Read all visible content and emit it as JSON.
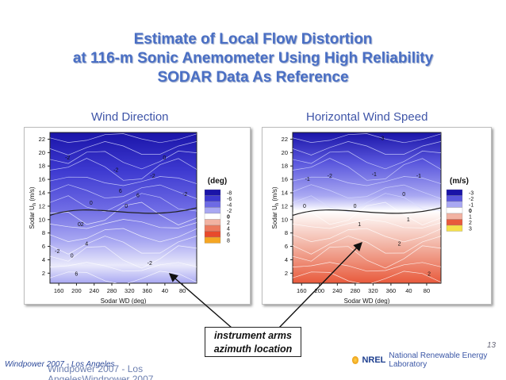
{
  "slide": {
    "title_lines": [
      "Estimate of Local Flow Distortion",
      "at 116-m Sonic Anemometer Using High Reliability",
      "SODAR Data As Reference"
    ],
    "footer_left": "Windpower 2007 - Los Angeles",
    "footer_ghost": "Windpower 2007 - Los AngelesWindpower 2007",
    "page_number": "13",
    "lab_name": "National Renewable Energy Laboratory",
    "lab_logo": "NREL",
    "callout": [
      "instrument arms",
      "azimuth location"
    ]
  },
  "chart_data": [
    {
      "type": "heatmap",
      "title": "Wind Direction",
      "xlabel": "Sodar WD (deg)",
      "ylabel": "Sodar U",
      "ylabel_sub": "h",
      "ylabel_unit": "(m/s)",
      "x_tick_labels": [
        "160",
        "200",
        "240",
        "280",
        "320",
        "360",
        "40",
        "80"
      ],
      "y_ticks": [
        2,
        4,
        6,
        8,
        10,
        12,
        14,
        16,
        18,
        20,
        22
      ],
      "ylim": [
        0.5,
        23
      ],
      "legend_title": "(deg)",
      "legend": [
        {
          "label": "-8",
          "color": "#1a14a8"
        },
        {
          "label": "-6",
          "color": "#3d39d0"
        },
        {
          "label": "-4",
          "color": "#6d6ae4"
        },
        {
          "label": "-2",
          "color": "#a9a8f2"
        },
        {
          "label": "0",
          "color": "#ffffff"
        },
        {
          "label": "2",
          "color": "#f2b3a3"
        },
        {
          "label": "4",
          "color": "#ec7a5e"
        },
        {
          "label": "6",
          "color": "#e84a2c"
        },
        {
          "label": "8",
          "color": "#f5a623"
        }
      ],
      "contour_labels": [
        "-2",
        "-2",
        "-2",
        "-2",
        "-2",
        "-2",
        "0",
        "0",
        "0",
        "0",
        "0",
        "2",
        "4",
        "6",
        "6",
        "6"
      ]
    },
    {
      "type": "heatmap",
      "title": "Horizontal Wind Speed",
      "xlabel": "Sodar WD (deg)",
      "ylabel": "Sodar U",
      "ylabel_sub": "h",
      "ylabel_unit": "(m/s)",
      "x_tick_labels": [
        "160",
        "200",
        "240",
        "280",
        "320",
        "360",
        "40",
        "80"
      ],
      "y_ticks": [
        2,
        4,
        6,
        8,
        10,
        12,
        14,
        16,
        18,
        20,
        22
      ],
      "ylim": [
        0.5,
        23
      ],
      "legend_title": "(m/s)",
      "legend": [
        {
          "label": "-3",
          "color": "#1a14a8"
        },
        {
          "label": "-2",
          "color": "#5a57dd"
        },
        {
          "label": "-1",
          "color": "#a9a8f2"
        },
        {
          "label": "0",
          "color": "#ffffff"
        },
        {
          "label": "1",
          "color": "#f2b3a3"
        },
        {
          "label": "2",
          "color": "#e85a3c"
        },
        {
          "label": "3",
          "color": "#f5e04a"
        }
      ],
      "contour_labels": [
        "-3",
        "-2",
        "-1",
        "-1",
        "-1",
        "0",
        "0",
        "0",
        "1",
        "1",
        "2",
        "2"
      ]
    }
  ]
}
